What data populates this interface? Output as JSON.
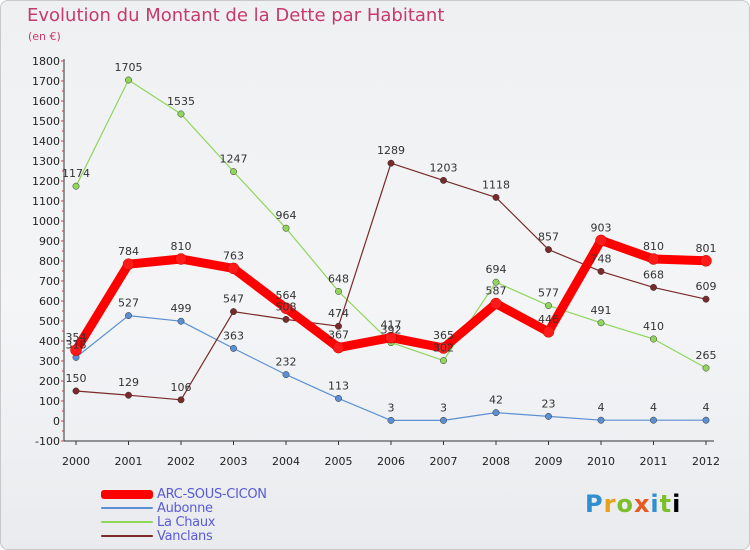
{
  "header": {
    "title": "Evolution du Montant de la Dette par Habitant",
    "unit": "(en €)"
  },
  "logo": {
    "text": "Proxiti"
  },
  "chart_data": {
    "type": "line",
    "title": "Evolution du Montant de la Dette par Habitant",
    "ylabel": "(en €)",
    "xlabel": "",
    "ylim": [
      -100,
      1800
    ],
    "ytick_step": 100,
    "grid": false,
    "legend_position": "bottom-left",
    "categories": [
      "2000",
      "2001",
      "2002",
      "2003",
      "2004",
      "2005",
      "2006",
      "2007",
      "2008",
      "2009",
      "2010",
      "2011",
      "2012"
    ],
    "series": [
      {
        "name": "ARC-SOUS-CICON",
        "color": "#ff0000",
        "width": 9,
        "values": [
          354,
          784,
          810,
          763,
          564,
          367,
          417,
          365,
          587,
          446,
          903,
          810,
          801
        ]
      },
      {
        "name": "Aubonne",
        "color": "#5b8fd2",
        "width": 1.2,
        "values": [
          318,
          527,
          499,
          363,
          232,
          113,
          3,
          3,
          42,
          23,
          4,
          4,
          4
        ]
      },
      {
        "name": "La Chaux",
        "color": "#8fd65a",
        "width": 1.2,
        "values": [
          1174,
          1705,
          1535,
          1247,
          964,
          648,
          392,
          302,
          694,
          577,
          491,
          410,
          265
        ]
      },
      {
        "name": "Vanclans",
        "color": "#7a2a2a",
        "width": 1.2,
        "values": [
          150,
          129,
          106,
          547,
          508,
          474,
          1289,
          1203,
          1118,
          857,
          748,
          668,
          609
        ]
      }
    ]
  }
}
